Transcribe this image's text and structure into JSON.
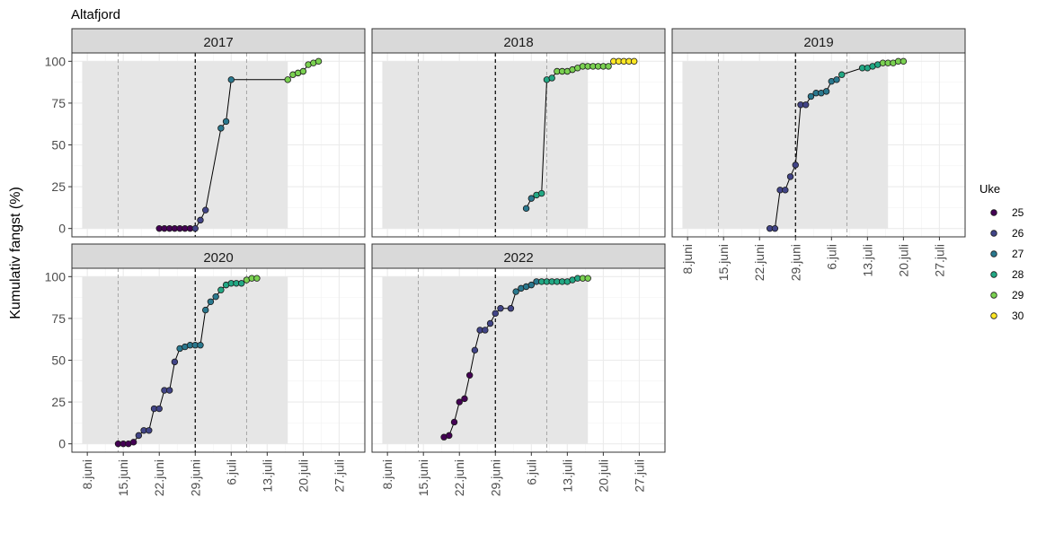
{
  "chart_data": {
    "type": "line",
    "title": "Altafjord",
    "ylabel": "Kumulativ fangst (%)",
    "xlabel": "",
    "ylim": [
      -5,
      105
    ],
    "yticks": [
      0,
      25,
      50,
      75,
      100
    ],
    "x_domain_days": [
      156,
      213
    ],
    "xticks": [
      {
        "day": 159,
        "label": "8.juni"
      },
      {
        "day": 166,
        "label": "15.juni"
      },
      {
        "day": 173,
        "label": "22.juni"
      },
      {
        "day": 180,
        "label": "29.juni"
      },
      {
        "day": 187,
        "label": "6.juli"
      },
      {
        "day": 194,
        "label": "13.juli"
      },
      {
        "day": 201,
        "label": "20.juli"
      },
      {
        "day": 208,
        "label": "27.juli"
      }
    ],
    "legend": {
      "title": "Uke",
      "placement": "right",
      "entries": [
        {
          "week": 25,
          "label": "25",
          "color": "#440154"
        },
        {
          "week": 26,
          "label": "26",
          "color": "#414487"
        },
        {
          "week": 27,
          "label": "27",
          "color": "#2A788E"
        },
        {
          "week": 28,
          "label": "28",
          "color": "#22A884"
        },
        {
          "week": 29,
          "label": "29",
          "color": "#7AD151"
        },
        {
          "week": 30,
          "label": "30",
          "color": "#FDE725"
        }
      ]
    },
    "grid": true,
    "shaded_period_days": [
      158,
      198
    ],
    "median_line_day": 180,
    "quartile_line_days": [
      165,
      190
    ],
    "panels": [
      {
        "label": "2017",
        "points": [
          [
            173,
            0,
            25
          ],
          [
            174,
            0,
            25
          ],
          [
            175,
            0,
            25
          ],
          [
            176,
            0,
            25
          ],
          [
            177,
            0,
            25
          ],
          [
            178,
            0,
            25
          ],
          [
            179,
            0,
            25
          ],
          [
            180,
            0,
            26
          ],
          [
            181,
            5,
            26
          ],
          [
            182,
            11,
            26
          ],
          [
            185,
            60,
            27
          ],
          [
            186,
            64,
            27
          ],
          [
            187,
            89,
            27
          ],
          [
            198,
            89,
            29
          ],
          [
            199,
            92,
            29
          ],
          [
            200,
            93,
            29
          ],
          [
            201,
            94,
            29
          ],
          [
            202,
            98,
            29
          ],
          [
            203,
            99,
            29
          ],
          [
            204,
            100,
            29
          ]
        ]
      },
      {
        "label": "2018",
        "points": [
          [
            186,
            12,
            27
          ],
          [
            187,
            18,
            27
          ],
          [
            188,
            20,
            28
          ],
          [
            189,
            21,
            28
          ],
          [
            190,
            89,
            28
          ],
          [
            191,
            90,
            28
          ],
          [
            192,
            94,
            29
          ],
          [
            193,
            94,
            29
          ],
          [
            194,
            94,
            29
          ],
          [
            195,
            95,
            29
          ],
          [
            196,
            96,
            29
          ],
          [
            197,
            97,
            29
          ],
          [
            198,
            97,
            29
          ],
          [
            199,
            97,
            29
          ],
          [
            200,
            97,
            29
          ],
          [
            201,
            97,
            29
          ],
          [
            202,
            97,
            29
          ],
          [
            203,
            100,
            30
          ],
          [
            204,
            100,
            30
          ],
          [
            205,
            100,
            30
          ],
          [
            206,
            100,
            30
          ],
          [
            207,
            100,
            30
          ]
        ]
      },
      {
        "label": "2019",
        "points": [
          [
            175,
            0,
            26
          ],
          [
            176,
            0,
            26
          ],
          [
            177,
            23,
            26
          ],
          [
            178,
            23,
            26
          ],
          [
            179,
            31,
            26
          ],
          [
            180,
            38,
            26
          ],
          [
            181,
            74,
            26
          ],
          [
            182,
            74,
            26
          ],
          [
            183,
            79,
            27
          ],
          [
            184,
            81,
            27
          ],
          [
            185,
            81,
            27
          ],
          [
            186,
            82,
            27
          ],
          [
            187,
            88,
            27
          ],
          [
            188,
            89,
            27
          ],
          [
            189,
            92,
            28
          ],
          [
            193,
            96,
            28
          ],
          [
            194,
            96,
            28
          ],
          [
            195,
            97,
            28
          ],
          [
            196,
            98,
            28
          ],
          [
            197,
            99,
            29
          ],
          [
            198,
            99,
            29
          ],
          [
            199,
            99,
            29
          ],
          [
            200,
            100,
            29
          ],
          [
            201,
            100,
            29
          ]
        ]
      },
      {
        "label": "2020",
        "points": [
          [
            165,
            0,
            25
          ],
          [
            166,
            0,
            25
          ],
          [
            167,
            0,
            25
          ],
          [
            168,
            1,
            25
          ],
          [
            169,
            5,
            26
          ],
          [
            170,
            8,
            26
          ],
          [
            171,
            8,
            26
          ],
          [
            172,
            21,
            26
          ],
          [
            173,
            21,
            26
          ],
          [
            174,
            32,
            26
          ],
          [
            175,
            32,
            26
          ],
          [
            176,
            49,
            26
          ],
          [
            177,
            57,
            27
          ],
          [
            178,
            58,
            27
          ],
          [
            179,
            59,
            27
          ],
          [
            180,
            59,
            27
          ],
          [
            181,
            59,
            27
          ],
          [
            182,
            80,
            27
          ],
          [
            183,
            85,
            27
          ],
          [
            184,
            88,
            27
          ],
          [
            185,
            92,
            28
          ],
          [
            186,
            95,
            28
          ],
          [
            187,
            96,
            28
          ],
          [
            188,
            96,
            28
          ],
          [
            189,
            96,
            28
          ],
          [
            190,
            98,
            29
          ],
          [
            191,
            99,
            29
          ],
          [
            192,
            99,
            29
          ]
        ]
      },
      {
        "label": "2022",
        "points": [
          [
            170,
            4,
            25
          ],
          [
            171,
            5,
            25
          ],
          [
            172,
            13,
            25
          ],
          [
            173,
            25,
            25
          ],
          [
            174,
            27,
            25
          ],
          [
            175,
            41,
            25
          ],
          [
            176,
            56,
            26
          ],
          [
            177,
            68,
            26
          ],
          [
            178,
            68,
            26
          ],
          [
            179,
            72,
            26
          ],
          [
            180,
            78,
            26
          ],
          [
            181,
            81,
            26
          ],
          [
            183,
            81,
            26
          ],
          [
            184,
            91,
            27
          ],
          [
            185,
            93,
            27
          ],
          [
            186,
            94,
            27
          ],
          [
            187,
            95,
            27
          ],
          [
            188,
            97,
            27
          ],
          [
            189,
            97,
            28
          ],
          [
            190,
            97,
            28
          ],
          [
            191,
            97,
            28
          ],
          [
            192,
            97,
            28
          ],
          [
            193,
            97,
            28
          ],
          [
            194,
            97,
            28
          ],
          [
            195,
            98,
            28
          ],
          [
            196,
            99,
            28
          ],
          [
            197,
            99,
            29
          ],
          [
            198,
            99,
            29
          ]
        ]
      }
    ]
  }
}
